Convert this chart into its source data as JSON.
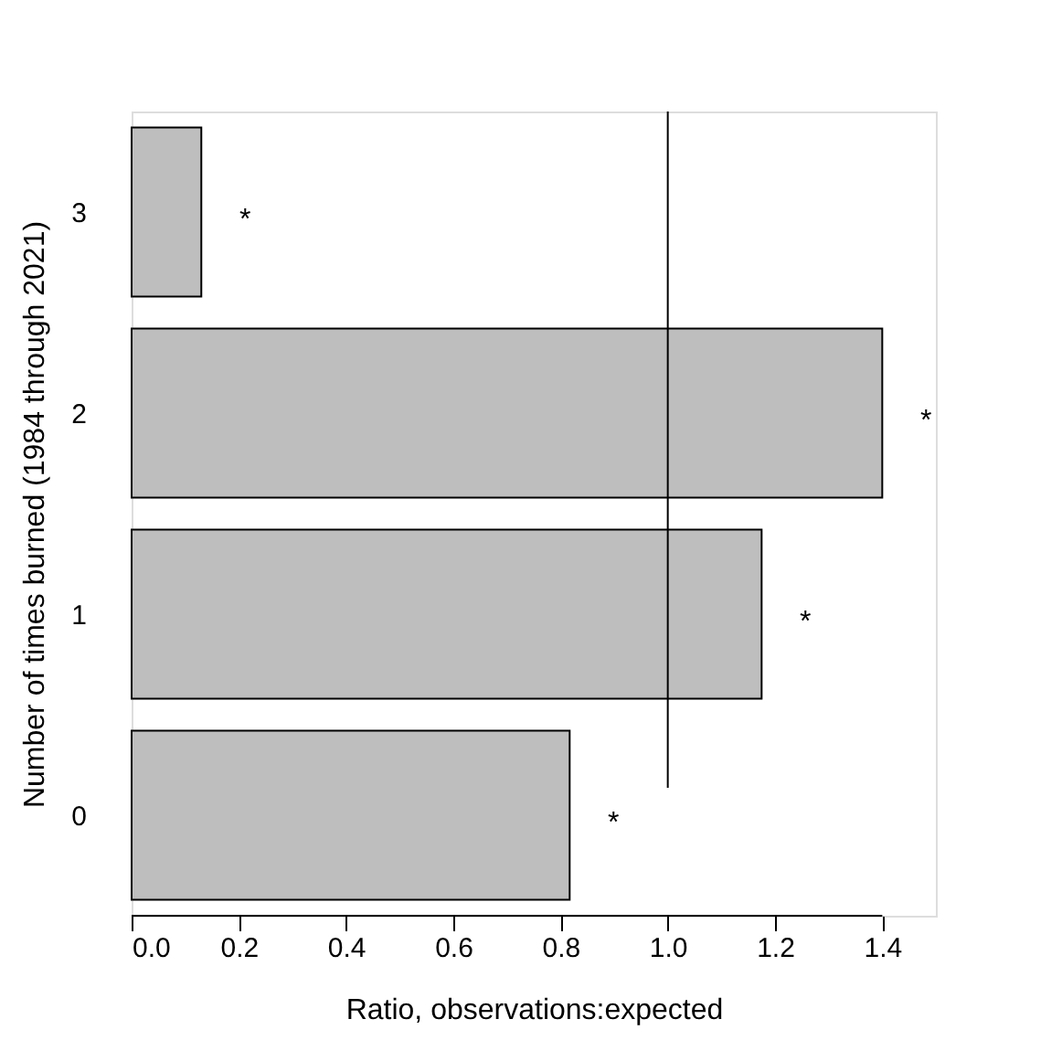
{
  "chart_data": {
    "type": "bar",
    "orientation": "horizontal",
    "xlabel": "Ratio, observations:expected",
    "ylabel": "Number of times burned (1984 through 2021)",
    "categories": [
      "3",
      "2",
      "1",
      "0"
    ],
    "values": [
      0.13,
      1.4,
      1.175,
      0.817
    ],
    "color": "#bebebe",
    "xlim": [
      0,
      1.5
    ],
    "xticks": [
      {
        "value": 0,
        "label": "0.0"
      },
      0.2,
      0.4,
      0.6,
      0.8,
      {
        "value": 1,
        "label": "1.0"
      },
      1.2,
      1.4
    ],
    "ref_lines": [
      {
        "axis": "x",
        "value": 1,
        "color": "#000000"
      }
    ],
    "annotations": [
      "*",
      "*",
      "*",
      "*"
    ],
    "grid": false
  }
}
